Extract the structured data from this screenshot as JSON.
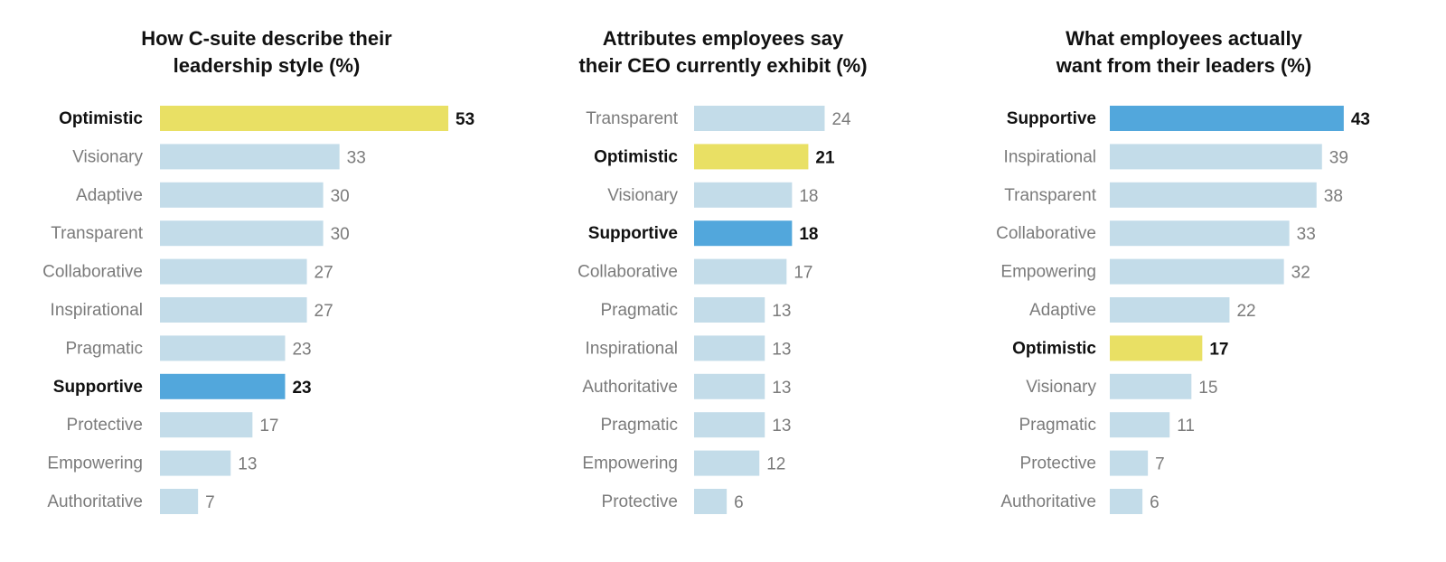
{
  "colors": {
    "default": "#c3dce9",
    "optimistic": "#e9e064",
    "supportive": "#52a7dc",
    "label_default": "#7b7b7b",
    "label_highlight": "#111111"
  },
  "chart_data": [
    {
      "type": "bar",
      "orientation": "horizontal",
      "title": "How C-suite describe their\nleadership style (%)",
      "categories": [
        "Optimistic",
        "Visionary",
        "Adaptive",
        "Transparent",
        "Collaborative",
        "Inspirational",
        "Pragmatic",
        "Supportive",
        "Protective",
        "Empowering",
        "Authoritative"
      ],
      "values": [
        53,
        33,
        30,
        30,
        27,
        27,
        23,
        23,
        17,
        13,
        7
      ],
      "highlights": {
        "Optimistic": "optimistic",
        "Supportive": "supportive"
      },
      "xlabel": "",
      "ylabel": "",
      "grid": false,
      "legend": "none"
    },
    {
      "type": "bar",
      "orientation": "horizontal",
      "title": "Attributes employees say\ntheir CEO currently exhibit (%)",
      "categories": [
        "Transparent",
        "Optimistic",
        "Visionary",
        "Supportive",
        "Collaborative",
        "Pragmatic",
        "Inspirational",
        "Authoritative",
        "Pragmatic",
        "Empowering",
        "Protective"
      ],
      "values": [
        24,
        21,
        18,
        18,
        17,
        13,
        13,
        13,
        13,
        12,
        6
      ],
      "highlights": {
        "Optimistic": "optimistic",
        "Supportive": "supportive"
      },
      "xlabel": "",
      "ylabel": "",
      "grid": false,
      "legend": "none"
    },
    {
      "type": "bar",
      "orientation": "horizontal",
      "title": "What employees actually\nwant from their leaders (%)",
      "categories": [
        "Supportive",
        "Inspirational",
        "Transparent",
        "Collaborative",
        "Empowering",
        "Adaptive",
        "Optimistic",
        "Visionary",
        "Pragmatic",
        "Protective",
        "Authoritative"
      ],
      "values": [
        43,
        39,
        38,
        33,
        32,
        22,
        17,
        15,
        11,
        7,
        6
      ],
      "highlights": {
        "Optimistic": "optimistic",
        "Supportive": "supportive"
      },
      "xlabel": "",
      "ylabel": "",
      "grid": false,
      "legend": "none"
    }
  ]
}
